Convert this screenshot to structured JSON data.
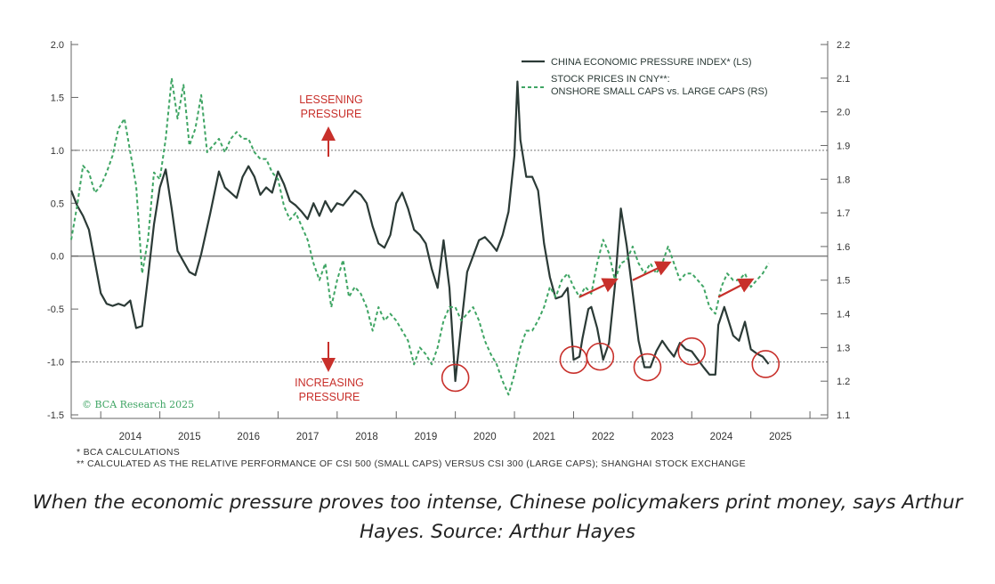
{
  "chart_data": {
    "type": "line",
    "title": "",
    "legend": [
      {
        "label": "CHINA ECONOMIC PRESSURE INDEX* (LS)",
        "style": "solid",
        "color": "#2b3a36"
      },
      {
        "label_line1": "STOCK PRICES IN CNY**:",
        "label_line2": "ONSHORE SMALL CAPS vs. LARGE CAPS (RS)",
        "style": "dashed",
        "color": "#3fa564"
      }
    ],
    "legend_placement": "top-right",
    "left_axis": {
      "ylim": [
        -1.5,
        2.0
      ],
      "ticks": [
        "-1.5",
        "-1.0",
        "-0.5",
        "0.0",
        "0.5",
        "1.0",
        "1.5",
        "2.0"
      ]
    },
    "right_axis": {
      "ylim": [
        1.1,
        2.2
      ],
      "ticks": [
        "1.1",
        "1.2",
        "1.3",
        "1.4",
        "1.5",
        "1.6",
        "1.7",
        "1.8",
        "1.9",
        "2.0",
        "2.1",
        "2.2"
      ]
    },
    "x_ticks": [
      "2014",
      "2015",
      "2016",
      "2017",
      "2018",
      "2019",
      "2020",
      "2021",
      "2022",
      "2023",
      "2024",
      "2025"
    ],
    "xlim": [
      2013.5,
      2026.3
    ],
    "reference_lines_ls": [
      1.0,
      0.0,
      -1.0
    ],
    "annotations": {
      "lessening": [
        "LESSENING",
        "PRESSURE"
      ],
      "increasing": [
        "INCREASING",
        "PRESSURE"
      ],
      "watermark": "© BCA Research 2025"
    },
    "circled_lows": [
      {
        "x": 2020.0,
        "y": -1.15
      },
      {
        "x": 2022.0,
        "y": -0.98
      },
      {
        "x": 2022.45,
        "y": -0.95
      },
      {
        "x": 2023.25,
        "y": -1.05
      },
      {
        "x": 2024.0,
        "y": -0.9
      },
      {
        "x": 2025.25,
        "y": -1.02
      }
    ],
    "trend_arrows_rs": [
      {
        "from": [
          2022.1,
          1.45
        ],
        "to": [
          2022.7,
          1.5
        ]
      },
      {
        "from": [
          2023.0,
          1.5
        ],
        "to": [
          2023.6,
          1.55
        ]
      },
      {
        "from": [
          2024.45,
          1.45
        ],
        "to": [
          2025.0,
          1.5
        ]
      }
    ],
    "series": [
      {
        "name": "CHINA ECONOMIC PRESSURE INDEX* (LS)",
        "axis": "left",
        "points": [
          [
            2013.5,
            0.62
          ],
          [
            2013.6,
            0.48
          ],
          [
            2013.7,
            0.38
          ],
          [
            2013.8,
            0.25
          ],
          [
            2014.0,
            -0.35
          ],
          [
            2014.1,
            -0.45
          ],
          [
            2014.2,
            -0.47
          ],
          [
            2014.3,
            -0.45
          ],
          [
            2014.4,
            -0.47
          ],
          [
            2014.5,
            -0.42
          ],
          [
            2014.6,
            -0.68
          ],
          [
            2014.7,
            -0.66
          ],
          [
            2014.8,
            -0.2
          ],
          [
            2014.9,
            0.3
          ],
          [
            2015.0,
            0.65
          ],
          [
            2015.1,
            0.82
          ],
          [
            2015.2,
            0.45
          ],
          [
            2015.3,
            0.05
          ],
          [
            2015.5,
            -0.15
          ],
          [
            2015.6,
            -0.18
          ],
          [
            2015.7,
            0.02
          ],
          [
            2015.85,
            0.4
          ],
          [
            2016.0,
            0.8
          ],
          [
            2016.1,
            0.65
          ],
          [
            2016.2,
            0.6
          ],
          [
            2016.3,
            0.55
          ],
          [
            2016.4,
            0.75
          ],
          [
            2016.5,
            0.85
          ],
          [
            2016.6,
            0.75
          ],
          [
            2016.7,
            0.58
          ],
          [
            2016.8,
            0.65
          ],
          [
            2016.9,
            0.6
          ],
          [
            2017.0,
            0.8
          ],
          [
            2017.1,
            0.68
          ],
          [
            2017.2,
            0.52
          ],
          [
            2017.3,
            0.48
          ],
          [
            2017.4,
            0.42
          ],
          [
            2017.5,
            0.35
          ],
          [
            2017.6,
            0.5
          ],
          [
            2017.7,
            0.38
          ],
          [
            2017.8,
            0.52
          ],
          [
            2017.9,
            0.42
          ],
          [
            2018.0,
            0.5
          ],
          [
            2018.1,
            0.48
          ],
          [
            2018.2,
            0.55
          ],
          [
            2018.3,
            0.62
          ],
          [
            2018.4,
            0.58
          ],
          [
            2018.5,
            0.5
          ],
          [
            2018.6,
            0.28
          ],
          [
            2018.7,
            0.12
          ],
          [
            2018.8,
            0.08
          ],
          [
            2018.9,
            0.2
          ],
          [
            2019.0,
            0.5
          ],
          [
            2019.1,
            0.6
          ],
          [
            2019.2,
            0.45
          ],
          [
            2019.3,
            0.25
          ],
          [
            2019.4,
            0.2
          ],
          [
            2019.5,
            0.12
          ],
          [
            2019.6,
            -0.12
          ],
          [
            2019.7,
            -0.3
          ],
          [
            2019.8,
            0.15
          ],
          [
            2019.9,
            -0.3
          ],
          [
            2020.0,
            -1.18
          ],
          [
            2020.08,
            -0.75
          ],
          [
            2020.2,
            -0.15
          ],
          [
            2020.4,
            0.15
          ],
          [
            2020.5,
            0.18
          ],
          [
            2020.6,
            0.12
          ],
          [
            2020.7,
            0.05
          ],
          [
            2020.8,
            0.2
          ],
          [
            2020.9,
            0.42
          ],
          [
            2021.0,
            0.95
          ],
          [
            2021.05,
            1.65
          ],
          [
            2021.1,
            1.1
          ],
          [
            2021.2,
            0.75
          ],
          [
            2021.3,
            0.75
          ],
          [
            2021.4,
            0.62
          ],
          [
            2021.5,
            0.12
          ],
          [
            2021.6,
            -0.2
          ],
          [
            2021.7,
            -0.4
          ],
          [
            2021.8,
            -0.38
          ],
          [
            2021.9,
            -0.3
          ],
          [
            2022.0,
            -0.98
          ],
          [
            2022.1,
            -0.95
          ],
          [
            2022.15,
            -0.78
          ],
          [
            2022.25,
            -0.5
          ],
          [
            2022.3,
            -0.48
          ],
          [
            2022.4,
            -0.68
          ],
          [
            2022.5,
            -0.98
          ],
          [
            2022.6,
            -0.82
          ],
          [
            2022.7,
            -0.28
          ],
          [
            2022.8,
            0.45
          ],
          [
            2022.9,
            0.1
          ],
          [
            2023.0,
            -0.35
          ],
          [
            2023.1,
            -0.8
          ],
          [
            2023.2,
            -1.05
          ],
          [
            2023.3,
            -1.05
          ],
          [
            2023.4,
            -0.9
          ],
          [
            2023.5,
            -0.8
          ],
          [
            2023.6,
            -0.88
          ],
          [
            2023.7,
            -0.95
          ],
          [
            2023.8,
            -0.82
          ],
          [
            2023.9,
            -0.88
          ],
          [
            2024.0,
            -0.9
          ],
          [
            2024.2,
            -1.05
          ],
          [
            2024.3,
            -1.12
          ],
          [
            2024.4,
            -1.12
          ],
          [
            2024.45,
            -0.65
          ],
          [
            2024.55,
            -0.48
          ],
          [
            2024.7,
            -0.75
          ],
          [
            2024.8,
            -0.8
          ],
          [
            2024.9,
            -0.62
          ],
          [
            2025.0,
            -0.88
          ],
          [
            2025.1,
            -0.92
          ],
          [
            2025.2,
            -0.95
          ],
          [
            2025.3,
            -1.02
          ]
        ]
      },
      {
        "name": "STOCK PRICES IN CNY**: ONSHORE SMALL CAPS vs. LARGE CAPS (RS)",
        "axis": "right",
        "points": [
          [
            2013.5,
            1.62
          ],
          [
            2013.6,
            1.72
          ],
          [
            2013.7,
            1.84
          ],
          [
            2013.8,
            1.82
          ],
          [
            2013.9,
            1.76
          ],
          [
            2014.0,
            1.78
          ],
          [
            2014.1,
            1.82
          ],
          [
            2014.2,
            1.87
          ],
          [
            2014.3,
            1.95
          ],
          [
            2014.4,
            1.98
          ],
          [
            2014.5,
            1.88
          ],
          [
            2014.6,
            1.78
          ],
          [
            2014.7,
            1.52
          ],
          [
            2014.8,
            1.62
          ],
          [
            2014.9,
            1.82
          ],
          [
            2015.0,
            1.8
          ],
          [
            2015.1,
            1.92
          ],
          [
            2015.2,
            2.1
          ],
          [
            2015.3,
            1.98
          ],
          [
            2015.4,
            2.08
          ],
          [
            2015.5,
            1.9
          ],
          [
            2015.6,
            1.95
          ],
          [
            2015.7,
            2.05
          ],
          [
            2015.8,
            1.88
          ],
          [
            2015.9,
            1.9
          ],
          [
            2016.0,
            1.92
          ],
          [
            2016.1,
            1.88
          ],
          [
            2016.2,
            1.92
          ],
          [
            2016.3,
            1.94
          ],
          [
            2016.4,
            1.92
          ],
          [
            2016.5,
            1.92
          ],
          [
            2016.6,
            1.88
          ],
          [
            2016.7,
            1.86
          ],
          [
            2016.8,
            1.86
          ],
          [
            2016.9,
            1.82
          ],
          [
            2017.0,
            1.8
          ],
          [
            2017.1,
            1.72
          ],
          [
            2017.2,
            1.68
          ],
          [
            2017.3,
            1.7
          ],
          [
            2017.4,
            1.66
          ],
          [
            2017.5,
            1.62
          ],
          [
            2017.6,
            1.55
          ],
          [
            2017.7,
            1.5
          ],
          [
            2017.8,
            1.55
          ],
          [
            2017.9,
            1.42
          ],
          [
            2018.0,
            1.5
          ],
          [
            2018.1,
            1.56
          ],
          [
            2018.2,
            1.45
          ],
          [
            2018.3,
            1.48
          ],
          [
            2018.4,
            1.46
          ],
          [
            2018.5,
            1.42
          ],
          [
            2018.6,
            1.35
          ],
          [
            2018.7,
            1.42
          ],
          [
            2018.8,
            1.38
          ],
          [
            2018.9,
            1.4
          ],
          [
            2019.0,
            1.38
          ],
          [
            2019.1,
            1.35
          ],
          [
            2019.2,
            1.32
          ],
          [
            2019.3,
            1.25
          ],
          [
            2019.4,
            1.3
          ],
          [
            2019.5,
            1.28
          ],
          [
            2019.6,
            1.25
          ],
          [
            2019.7,
            1.3
          ],
          [
            2019.8,
            1.38
          ],
          [
            2019.9,
            1.42
          ],
          [
            2020.0,
            1.42
          ],
          [
            2020.1,
            1.38
          ],
          [
            2020.2,
            1.4
          ],
          [
            2020.3,
            1.42
          ],
          [
            2020.4,
            1.38
          ],
          [
            2020.5,
            1.32
          ],
          [
            2020.6,
            1.28
          ],
          [
            2020.7,
            1.25
          ],
          [
            2020.8,
            1.2
          ],
          [
            2020.9,
            1.16
          ],
          [
            2021.0,
            1.22
          ],
          [
            2021.1,
            1.3
          ],
          [
            2021.2,
            1.35
          ],
          [
            2021.3,
            1.35
          ],
          [
            2021.4,
            1.38
          ],
          [
            2021.5,
            1.42
          ],
          [
            2021.6,
            1.48
          ],
          [
            2021.7,
            1.45
          ],
          [
            2021.8,
            1.5
          ],
          [
            2021.9,
            1.52
          ],
          [
            2022.0,
            1.48
          ],
          [
            2022.1,
            1.45
          ],
          [
            2022.2,
            1.48
          ],
          [
            2022.3,
            1.46
          ],
          [
            2022.4,
            1.55
          ],
          [
            2022.5,
            1.62
          ],
          [
            2022.6,
            1.58
          ],
          [
            2022.7,
            1.5
          ],
          [
            2022.8,
            1.55
          ],
          [
            2022.9,
            1.56
          ],
          [
            2023.0,
            1.6
          ],
          [
            2023.1,
            1.55
          ],
          [
            2023.2,
            1.52
          ],
          [
            2023.3,
            1.55
          ],
          [
            2023.4,
            1.52
          ],
          [
            2023.5,
            1.55
          ],
          [
            2023.6,
            1.6
          ],
          [
            2023.7,
            1.55
          ],
          [
            2023.8,
            1.5
          ],
          [
            2023.9,
            1.52
          ],
          [
            2024.0,
            1.52
          ],
          [
            2024.1,
            1.5
          ],
          [
            2024.2,
            1.48
          ],
          [
            2024.3,
            1.42
          ],
          [
            2024.4,
            1.4
          ],
          [
            2024.5,
            1.48
          ],
          [
            2024.6,
            1.52
          ],
          [
            2024.7,
            1.5
          ],
          [
            2024.8,
            1.5
          ],
          [
            2024.9,
            1.52
          ],
          [
            2025.0,
            1.48
          ],
          [
            2025.1,
            1.5
          ],
          [
            2025.2,
            1.52
          ],
          [
            2025.3,
            1.55
          ]
        ]
      }
    ]
  },
  "footnotes": {
    "line1": "* BCA CALCULATIONS",
    "line2": "** CALCULATED AS THE RELATIVE PERFORMANCE OF CSI 500 (SMALL CAPS) VERSUS CSI 300 (LARGE CAPS); SHANGHAI STOCK EXCHANGE"
  },
  "caption": "When the economic pressure proves too intense, Chinese policymakers print money, says Arthur Hayes. Source: Arthur Hayes",
  "colors": {
    "pressure_line": "#2b3a36",
    "stock_line": "#3fa564",
    "annotation_red": "#c8302b",
    "axis": "#666666",
    "zero_line": "#888888"
  }
}
